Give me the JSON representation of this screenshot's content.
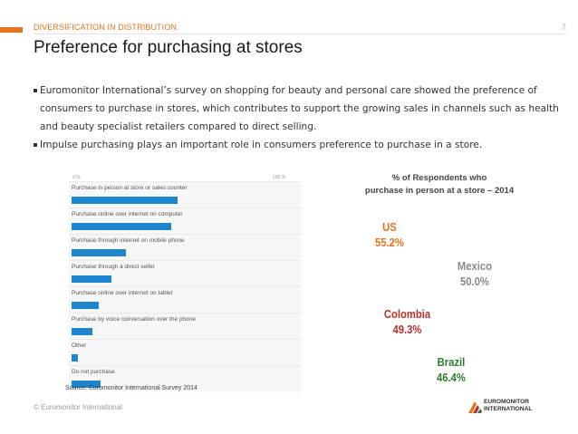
{
  "header": {
    "section": "DIVERSIFICATION IN DISTRIBUTION",
    "page_number": "7",
    "title": "Preference for purchasing at stores"
  },
  "bullets": [
    "Euromonitor International’s survey on shopping for beauty and personal care showed the preference of consumers to purchase in stores, which contributes to support the growing sales in channels such as health and beauty specialist retailers compared to direct selling.",
    "Impulse purchasing plays an important role in consumers preference to purchase in a store."
  ],
  "survey_chart": {
    "axis_min_label": "0 %",
    "axis_max_label": "100 %",
    "source": "Source: Euromonitor International Survey 2014",
    "colors": {
      "bar": "#1d86cf"
    }
  },
  "chart_data": {
    "type": "bar",
    "orientation": "horizontal",
    "categories": [
      "Purchase in person at store or sales counter",
      "Purchase online over internet on computer",
      "Purchase through internet on mobile phone",
      "Purchase through a direct seller",
      "Purchase online over internet on tablet",
      "Purchase by voice conversation over the phone",
      "Other",
      "Do not purchase"
    ],
    "values": [
      51,
      48,
      26,
      19,
      13,
      10,
      3,
      14
    ],
    "xlim": [
      0,
      100
    ]
  },
  "respondents": {
    "title_line1": "% of Respondents who",
    "title_line2": "purchase in person at a store – 2014",
    "countries": [
      {
        "name": "US",
        "value": "55.2%",
        "color": "#e8731f"
      },
      {
        "name": "Mexico",
        "value": "50.0%",
        "color": "#8a8a8a"
      },
      {
        "name": "Colombia",
        "value": "49.3%",
        "color": "#b5322a"
      },
      {
        "name": "Brazil",
        "value": "46.4%",
        "color": "#2f7a2f"
      }
    ]
  },
  "footer": {
    "copyright": "© Euromonitor International",
    "logo_line1": "EUROMONITOR",
    "logo_line2": "INTERNATIONAL"
  }
}
